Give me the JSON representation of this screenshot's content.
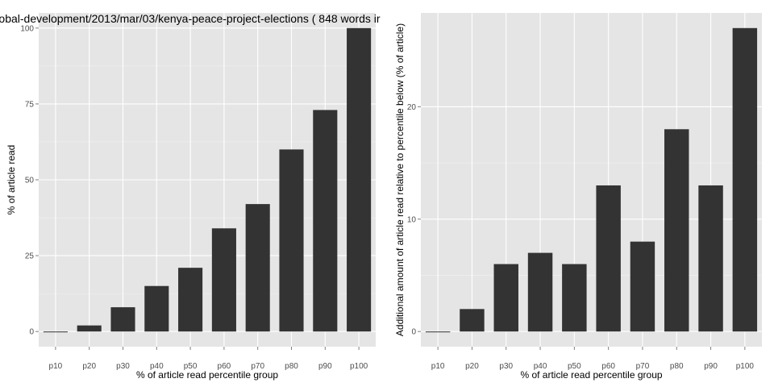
{
  "chart_data": [
    {
      "type": "bar",
      "title": "obal-development/2013/mar/03/kenya-peace-project-elections ( 848 words ir",
      "xlabel": "% of article read percentile group",
      "ylabel": "% of article read",
      "categories": [
        "p10",
        "p20",
        "p30",
        "p40",
        "p50",
        "p60",
        "p70",
        "p80",
        "p90",
        "p100"
      ],
      "values": [
        0,
        2,
        8,
        15,
        21,
        34,
        42,
        60,
        73,
        100
      ],
      "ylim": [
        -5,
        105
      ],
      "yticks": [
        0,
        25,
        50,
        75,
        100
      ],
      "grid": true
    },
    {
      "type": "bar",
      "title": "",
      "xlabel": "% of article read percentile group",
      "ylabel": "Additional amount of article read relative to percentile below (% of article)",
      "categories": [
        "p10",
        "p20",
        "p30",
        "p40",
        "p50",
        "p60",
        "p70",
        "p80",
        "p90",
        "p100"
      ],
      "values": [
        0,
        2,
        6,
        7,
        6,
        13,
        8,
        18,
        13,
        27
      ],
      "ylim": [
        -1.35,
        28.35
      ],
      "yticks": [
        0,
        10,
        20
      ],
      "grid": true
    }
  ],
  "colors": {
    "panel": "#e5e5e5",
    "grid_major": "#ffffff",
    "grid_minor": "#f2f2f2",
    "bar": "#333333"
  }
}
